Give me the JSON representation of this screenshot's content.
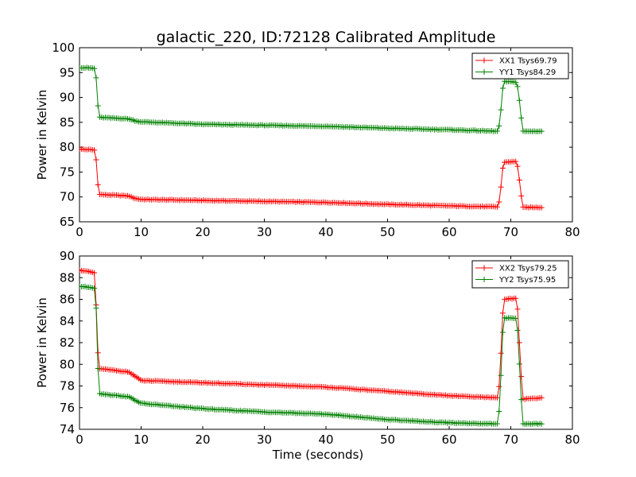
{
  "title": "galactic_220, ID:72128 Calibrated Amplitude",
  "colors": {
    "red": "#ff0000",
    "green": "#008000",
    "axes": "#000000"
  },
  "chart_data": [
    {
      "type": "line",
      "xlabel": "",
      "ylabel": "Power in Kelvin",
      "xlim": [
        0,
        80
      ],
      "ylim": [
        65,
        100
      ],
      "xticks": [
        "0",
        "10",
        "20",
        "30",
        "40",
        "50",
        "60",
        "70",
        "80"
      ],
      "yticks": [
        "65",
        "70",
        "75",
        "80",
        "85",
        "90",
        "95",
        "100"
      ],
      "grid": false,
      "legend_position": "top-right",
      "marker": "+",
      "series": [
        {
          "name": "XX1 Tsys69.79",
          "color": "#ff0000",
          "points": [
            [
              0,
              79.6
            ],
            [
              2.0,
              79.5
            ],
            [
              2.5,
              79.4
            ],
            [
              2.8,
              76.5
            ],
            [
              3.1,
              70.5
            ],
            [
              8.0,
              70.2
            ],
            [
              9.0,
              69.7
            ],
            [
              10,
              69.5
            ],
            [
              20,
              69.3
            ],
            [
              30,
              69.1
            ],
            [
              40,
              68.9
            ],
            [
              50,
              68.5
            ],
            [
              60,
              68.2
            ],
            [
              68.0,
              68.0
            ],
            [
              68.4,
              72.0
            ],
            [
              68.8,
              77.0
            ],
            [
              71.0,
              77.1
            ],
            [
              71.5,
              72.5
            ],
            [
              71.9,
              67.9
            ],
            [
              75.0,
              67.9
            ]
          ]
        },
        {
          "name": "YY1 Tsys84.29",
          "color": "#008000",
          "points": [
            [
              0,
              96.0
            ],
            [
              2.0,
              95.9
            ],
            [
              2.5,
              95.8
            ],
            [
              2.8,
              93.0
            ],
            [
              3.1,
              86.0
            ],
            [
              8.0,
              85.7
            ],
            [
              9.0,
              85.3
            ],
            [
              10,
              85.1
            ],
            [
              20,
              84.6
            ],
            [
              30,
              84.4
            ],
            [
              40,
              84.2
            ],
            [
              50,
              83.8
            ],
            [
              60,
              83.5
            ],
            [
              68.0,
              83.2
            ],
            [
              68.4,
              87.5
            ],
            [
              68.8,
              93.2
            ],
            [
              71.0,
              93.1
            ],
            [
              71.5,
              88.5
            ],
            [
              71.9,
              83.2
            ],
            [
              75.0,
              83.2
            ]
          ]
        }
      ]
    },
    {
      "type": "line",
      "xlabel": "Time (seconds)",
      "ylabel": "Power in Kelvin",
      "xlim": [
        0,
        80
      ],
      "ylim": [
        74,
        90
      ],
      "xticks": [
        "0",
        "10",
        "20",
        "30",
        "40",
        "50",
        "60",
        "70",
        "80"
      ],
      "yticks": [
        "74",
        "76",
        "78",
        "80",
        "82",
        "84",
        "86",
        "88",
        "90"
      ],
      "grid": false,
      "legend_position": "top-right",
      "marker": "+",
      "series": [
        {
          "name": "XX2 Tsys79.25",
          "color": "#ff0000",
          "points": [
            [
              0,
              88.7
            ],
            [
              2.0,
              88.5
            ],
            [
              2.5,
              88.4
            ],
            [
              2.8,
              84.0
            ],
            [
              3.1,
              79.6
            ],
            [
              8.0,
              79.3
            ],
            [
              9.0,
              78.9
            ],
            [
              10,
              78.5
            ],
            [
              20,
              78.3
            ],
            [
              30,
              78.1
            ],
            [
              40,
              77.9
            ],
            [
              50,
              77.5
            ],
            [
              60,
              77.1
            ],
            [
              68.0,
              76.9
            ],
            [
              68.4,
              81.0
            ],
            [
              68.8,
              86.0
            ],
            [
              71.0,
              86.1
            ],
            [
              71.5,
              81.0
            ],
            [
              71.9,
              76.8
            ],
            [
              75.0,
              76.9
            ]
          ]
        },
        {
          "name": "YY2 Tsys75.95",
          "color": "#008000",
          "points": [
            [
              0,
              87.2
            ],
            [
              2.0,
              87.1
            ],
            [
              2.5,
              87.0
            ],
            [
              2.8,
              84.3
            ],
            [
              3.1,
              77.3
            ],
            [
              8.0,
              77.0
            ],
            [
              9.0,
              76.7
            ],
            [
              10,
              76.4
            ],
            [
              20,
              75.9
            ],
            [
              30,
              75.6
            ],
            [
              40,
              75.4
            ],
            [
              50,
              74.9
            ],
            [
              60,
              74.6
            ],
            [
              68.0,
              74.5
            ],
            [
              68.4,
              79.0
            ],
            [
              68.8,
              84.3
            ],
            [
              71.0,
              84.2
            ],
            [
              71.5,
              79.0
            ],
            [
              71.9,
              74.5
            ],
            [
              75.0,
              74.5
            ]
          ]
        }
      ]
    }
  ]
}
